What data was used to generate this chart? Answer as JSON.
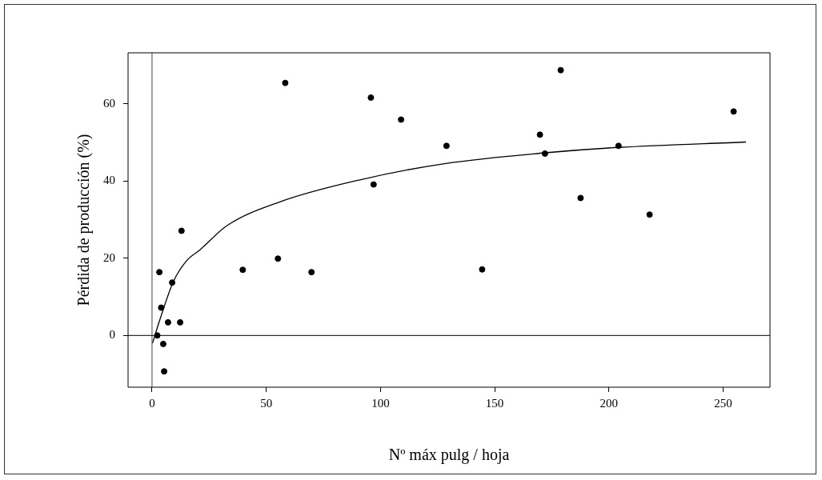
{
  "chart_data": {
    "type": "scatter",
    "xlabel": "Nº máx pulg / hoja",
    "ylabel": "Pérdida de producción (%)",
    "xlim": [
      -10.5,
      270.5
    ],
    "ylim": [
      -13.4,
      73.2
    ],
    "xticks": [
      0,
      50,
      100,
      150,
      200,
      250
    ],
    "yticks": [
      0,
      20,
      40,
      60
    ],
    "grid": false,
    "legend": false,
    "marker": "circle",
    "series": [
      {
        "color": "#000000",
        "x": [
          3.2,
          4.0,
          8.8,
          7.0,
          12.3,
          12.9,
          2.3,
          4.9,
          5.3,
          39.7,
          55.1,
          69.8,
          58.3,
          95.8,
          109.0,
          97.0,
          128.9,
          144.5,
          169.8,
          172.0,
          178.9,
          187.6,
          204.2,
          217.8,
          254.6
        ],
        "values": [
          16.4,
          7.2,
          13.7,
          3.4,
          3.4,
          27.1,
          0,
          -2.2,
          -9.3,
          17.0,
          19.9,
          16.4,
          65.4,
          61.6,
          55.9,
          39.1,
          49.1,
          17.1,
          52.0,
          47.1,
          68.7,
          35.6,
          49.1,
          31.3,
          58.0
        ]
      },
      {
        "type": "line",
        "color": "#000000",
        "marker": "none",
        "line_style": "solid",
        "x": [
          0.2,
          3.5,
          9.3,
          15.2,
          21,
          32.7,
          56,
          91,
          128,
          172,
          204,
          260
        ],
        "values": [
          -2,
          4.2,
          13.9,
          19.4,
          22.2,
          28.4,
          34.6,
          40.3,
          44.5,
          47.3,
          48.7,
          50.1
        ]
      }
    ],
    "ref_lines": [
      {
        "axis": "x",
        "value": 0,
        "color": "#444444",
        "line_style": "solid"
      },
      {
        "axis": "y",
        "value": 0,
        "color": "#000000",
        "line_style": "solid"
      }
    ]
  }
}
